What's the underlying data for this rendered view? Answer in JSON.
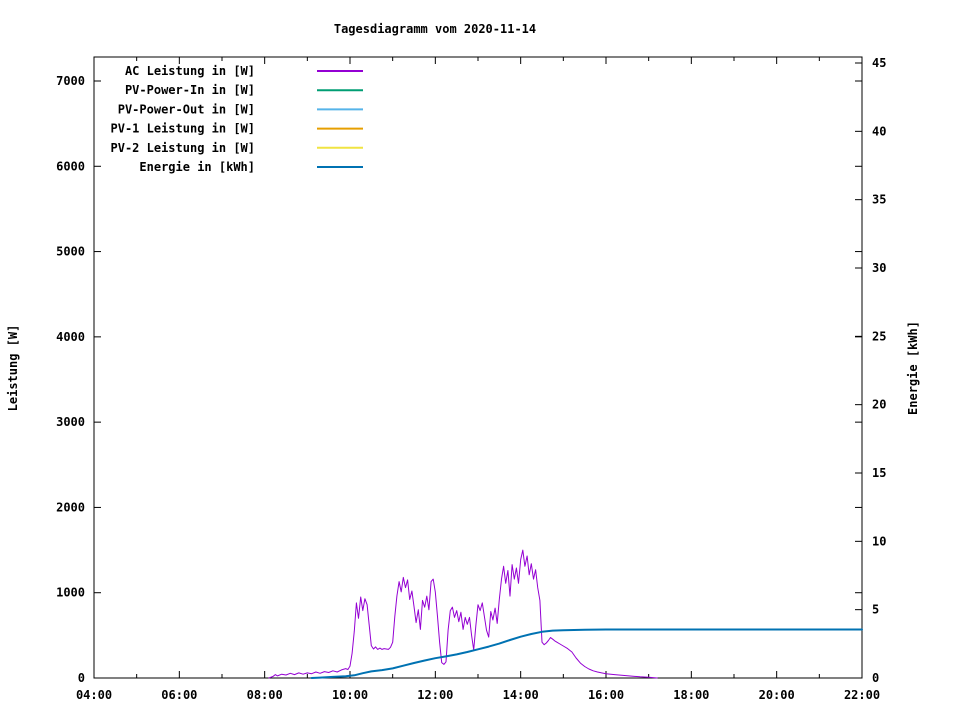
{
  "chart_data": {
    "type": "line",
    "title": "Tagesdiagramm vom 2020-11-14",
    "x_axis": {
      "min_hour": 4,
      "max_hour": 22,
      "ticks": [
        {
          "h": 4,
          "label": "04:00"
        },
        {
          "h": 6,
          "label": "06:00"
        },
        {
          "h": 8,
          "label": "08:00"
        },
        {
          "h": 10,
          "label": "10:00"
        },
        {
          "h": 12,
          "label": "12:00"
        },
        {
          "h": 14,
          "label": "14:00"
        },
        {
          "h": 16,
          "label": "16:00"
        },
        {
          "h": 18,
          "label": "18:00"
        },
        {
          "h": 20,
          "label": "20:00"
        },
        {
          "h": 22,
          "label": "22:00"
        }
      ]
    },
    "y_left_axis": {
      "title": "Leistung [W]",
      "min": 0,
      "max": 7000,
      "ticks": [
        {
          "v": 0,
          "label": "0"
        },
        {
          "v": 1000,
          "label": "1000"
        },
        {
          "v": 2000,
          "label": "2000"
        },
        {
          "v": 3000,
          "label": "3000"
        },
        {
          "v": 4000,
          "label": "4000"
        },
        {
          "v": 5000,
          "label": "5000"
        },
        {
          "v": 6000,
          "label": "6000"
        },
        {
          "v": 7000,
          "label": "7000"
        }
      ]
    },
    "y_right_axis": {
      "title": "Energie [kWh]",
      "min": 0,
      "max": 45,
      "ticks": [
        {
          "v": 0,
          "label": "0"
        },
        {
          "v": 5,
          "label": "5"
        },
        {
          "v": 10,
          "label": "10"
        },
        {
          "v": 15,
          "label": "15"
        },
        {
          "v": 20,
          "label": "20"
        },
        {
          "v": 25,
          "label": "25"
        },
        {
          "v": 30,
          "label": "30"
        },
        {
          "v": 35,
          "label": "35"
        },
        {
          "v": 40,
          "label": "40"
        },
        {
          "v": 45,
          "label": "45"
        }
      ]
    },
    "legend": [
      {
        "label": "AC Leistung in [W]",
        "color": "#9400D3"
      },
      {
        "label": "PV-Power-In in [W]",
        "color": "#009E73"
      },
      {
        "label": "PV-Power-Out in [W]",
        "color": "#56B4E9"
      },
      {
        "label": "PV-1 Leistung in [W]",
        "color": "#E69F00"
      },
      {
        "label": "PV-2 Leistung in [W]",
        "color": "#F0E442"
      },
      {
        "label": "Energie in [kWh]",
        "color": "#0072B2"
      }
    ],
    "series": [
      {
        "name": "AC Leistung in [W]",
        "color": "#9400D3",
        "axis": "left",
        "width": 1,
        "points": [
          [
            8.1,
            0
          ],
          [
            8.2,
            20
          ],
          [
            8.25,
            40
          ],
          [
            8.3,
            25
          ],
          [
            8.4,
            45
          ],
          [
            8.5,
            35
          ],
          [
            8.6,
            55
          ],
          [
            8.7,
            40
          ],
          [
            8.8,
            60
          ],
          [
            8.9,
            45
          ],
          [
            9.0,
            60
          ],
          [
            9.1,
            50
          ],
          [
            9.2,
            70
          ],
          [
            9.3,
            55
          ],
          [
            9.4,
            75
          ],
          [
            9.5,
            65
          ],
          [
            9.6,
            85
          ],
          [
            9.7,
            70
          ],
          [
            9.8,
            95
          ],
          [
            9.9,
            110
          ],
          [
            9.95,
            100
          ],
          [
            10.0,
            140
          ],
          [
            10.05,
            290
          ],
          [
            10.1,
            550
          ],
          [
            10.15,
            880
          ],
          [
            10.2,
            700
          ],
          [
            10.25,
            950
          ],
          [
            10.3,
            790
          ],
          [
            10.35,
            930
          ],
          [
            10.4,
            860
          ],
          [
            10.45,
            620
          ],
          [
            10.5,
            380
          ],
          [
            10.55,
            340
          ],
          [
            10.6,
            365
          ],
          [
            10.65,
            335
          ],
          [
            10.7,
            350
          ],
          [
            10.75,
            335
          ],
          [
            10.8,
            345
          ],
          [
            10.9,
            335
          ],
          [
            10.95,
            360
          ],
          [
            11.0,
            420
          ],
          [
            11.05,
            720
          ],
          [
            11.1,
            960
          ],
          [
            11.15,
            1130
          ],
          [
            11.2,
            1010
          ],
          [
            11.25,
            1180
          ],
          [
            11.3,
            1060
          ],
          [
            11.35,
            1150
          ],
          [
            11.4,
            920
          ],
          [
            11.45,
            1020
          ],
          [
            11.5,
            840
          ],
          [
            11.55,
            650
          ],
          [
            11.6,
            800
          ],
          [
            11.65,
            570
          ],
          [
            11.7,
            910
          ],
          [
            11.75,
            830
          ],
          [
            11.8,
            960
          ],
          [
            11.85,
            800
          ],
          [
            11.9,
            1130
          ],
          [
            11.95,
            1160
          ],
          [
            12.0,
            1010
          ],
          [
            12.05,
            720
          ],
          [
            12.1,
            420
          ],
          [
            12.15,
            180
          ],
          [
            12.2,
            160
          ],
          [
            12.25,
            190
          ],
          [
            12.3,
            560
          ],
          [
            12.35,
            790
          ],
          [
            12.4,
            830
          ],
          [
            12.45,
            710
          ],
          [
            12.5,
            790
          ],
          [
            12.55,
            660
          ],
          [
            12.6,
            770
          ],
          [
            12.65,
            570
          ],
          [
            12.7,
            710
          ],
          [
            12.75,
            630
          ],
          [
            12.8,
            710
          ],
          [
            12.85,
            500
          ],
          [
            12.9,
            330
          ],
          [
            12.95,
            620
          ],
          [
            13.0,
            860
          ],
          [
            13.05,
            790
          ],
          [
            13.1,
            880
          ],
          [
            13.15,
            720
          ],
          [
            13.2,
            560
          ],
          [
            13.25,
            480
          ],
          [
            13.3,
            780
          ],
          [
            13.35,
            680
          ],
          [
            13.4,
            820
          ],
          [
            13.45,
            640
          ],
          [
            13.5,
            920
          ],
          [
            13.55,
            1160
          ],
          [
            13.6,
            1310
          ],
          [
            13.65,
            1110
          ],
          [
            13.7,
            1260
          ],
          [
            13.75,
            960
          ],
          [
            13.8,
            1330
          ],
          [
            13.85,
            1160
          ],
          [
            13.9,
            1290
          ],
          [
            13.95,
            1110
          ],
          [
            14.0,
            1390
          ],
          [
            14.05,
            1500
          ],
          [
            14.1,
            1310
          ],
          [
            14.15,
            1430
          ],
          [
            14.2,
            1210
          ],
          [
            14.25,
            1340
          ],
          [
            14.3,
            1160
          ],
          [
            14.35,
            1270
          ],
          [
            14.4,
            1060
          ],
          [
            14.45,
            910
          ],
          [
            14.5,
            420
          ],
          [
            14.55,
            390
          ],
          [
            14.6,
            410
          ],
          [
            14.65,
            440
          ],
          [
            14.7,
            475
          ],
          [
            14.75,
            455
          ],
          [
            14.8,
            435
          ],
          [
            14.85,
            420
          ],
          [
            14.9,
            405
          ],
          [
            15.0,
            375
          ],
          [
            15.1,
            345
          ],
          [
            15.2,
            305
          ],
          [
            15.3,
            235
          ],
          [
            15.4,
            175
          ],
          [
            15.5,
            135
          ],
          [
            15.6,
            105
          ],
          [
            15.7,
            85
          ],
          [
            15.8,
            70
          ],
          [
            15.9,
            60
          ],
          [
            16.0,
            50
          ],
          [
            16.2,
            40
          ],
          [
            16.4,
            30
          ],
          [
            16.6,
            22
          ],
          [
            16.8,
            14
          ],
          [
            17.0,
            8
          ],
          [
            17.2,
            0
          ]
        ]
      },
      {
        "name": "PV-Power-In in [W]",
        "color": "#009E73",
        "axis": "left",
        "width": 1,
        "points": []
      },
      {
        "name": "PV-Power-Out in [W]",
        "color": "#56B4E9",
        "axis": "left",
        "width": 1,
        "points": []
      },
      {
        "name": "PV-1 Leistung in [W]",
        "color": "#E69F00",
        "axis": "left",
        "width": 1,
        "points": []
      },
      {
        "name": "PV-2 Leistung in [W]",
        "color": "#F0E442",
        "axis": "left",
        "width": 1,
        "points": []
      },
      {
        "name": "Energie in [kWh]",
        "color": "#0072B2",
        "axis": "right",
        "width": 2,
        "points": [
          [
            9.1,
            0
          ],
          [
            9.3,
            0.03
          ],
          [
            9.6,
            0.08
          ],
          [
            9.9,
            0.13
          ],
          [
            10.1,
            0.2
          ],
          [
            10.3,
            0.35
          ],
          [
            10.5,
            0.48
          ],
          [
            10.75,
            0.58
          ],
          [
            11.0,
            0.7
          ],
          [
            11.25,
            0.9
          ],
          [
            11.5,
            1.1
          ],
          [
            11.75,
            1.28
          ],
          [
            12.0,
            1.45
          ],
          [
            12.25,
            1.58
          ],
          [
            12.5,
            1.73
          ],
          [
            12.75,
            1.9
          ],
          [
            13.0,
            2.1
          ],
          [
            13.25,
            2.3
          ],
          [
            13.5,
            2.52
          ],
          [
            13.75,
            2.78
          ],
          [
            14.0,
            3.02
          ],
          [
            14.25,
            3.22
          ],
          [
            14.5,
            3.38
          ],
          [
            14.75,
            3.47
          ],
          [
            15.0,
            3.5
          ],
          [
            15.5,
            3.53
          ],
          [
            16.0,
            3.55
          ],
          [
            17.0,
            3.55
          ],
          [
            18.0,
            3.55
          ],
          [
            20.0,
            3.55
          ],
          [
            22.0,
            3.55
          ]
        ]
      }
    ],
    "layout_hints": {
      "grid": "off",
      "legend_position": "top-left-inside",
      "border": "box-with-mirrored-ticks"
    }
  }
}
